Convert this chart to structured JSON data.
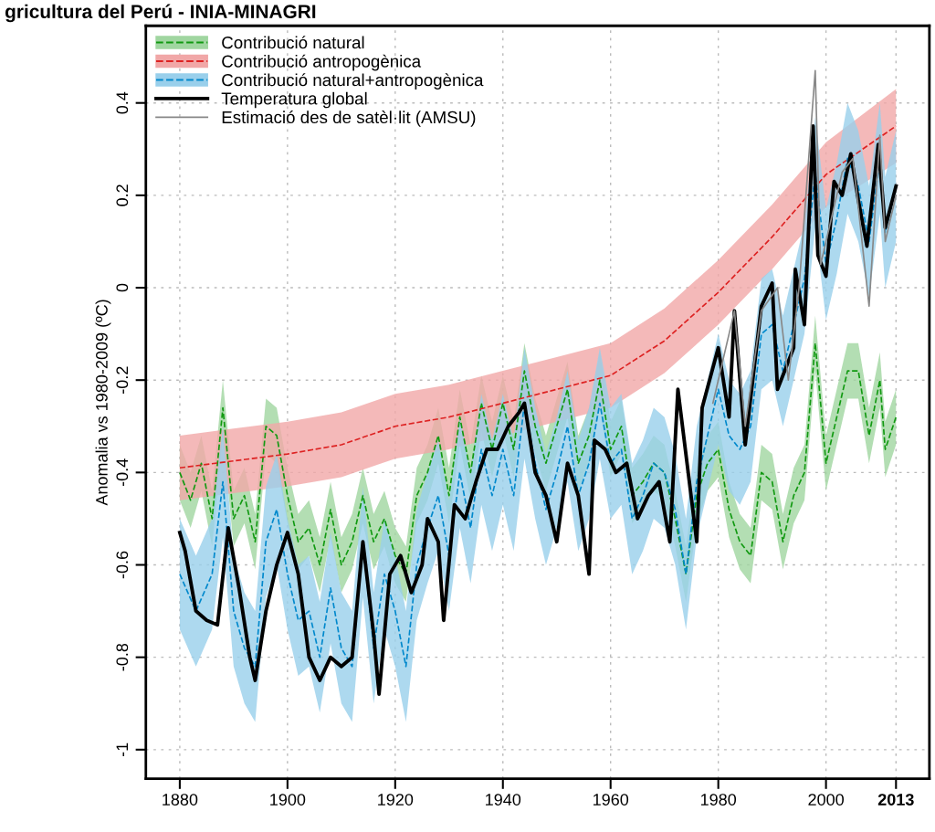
{
  "chart_data": {
    "type": "line",
    "ylabel": "Anomalia vs 1980-2009 (ºC)",
    "annotations": [
      "gricultura del Perú - INIA-MINAGRI"
    ],
    "xlim": [
      1873.7,
      2019.2
    ],
    "ylim": [
      -1.063,
      0.567
    ],
    "xticks": [
      1880,
      1900,
      1920,
      1940,
      1960,
      1980,
      2000,
      {
        "value": 2013,
        "label": "2013"
      }
    ],
    "yticks": [
      -1,
      -0.8,
      -0.6,
      -0.4,
      -0.2,
      0,
      0.2,
      0.4
    ],
    "grid": true,
    "legend": "top left",
    "series": [
      {
        "name": "Contribució natural",
        "color": "#119911",
        "line_style": "dashed",
        "x": [
          1880,
          1882,
          1884,
          1886,
          1888,
          1890,
          1892,
          1894,
          1896,
          1898,
          1900,
          1902,
          1904,
          1906,
          1908,
          1910,
          1912,
          1914,
          1916,
          1918,
          1920,
          1922,
          1924,
          1926,
          1928,
          1930,
          1932,
          1934,
          1936,
          1938,
          1940,
          1942,
          1944,
          1946,
          1948,
          1950,
          1952,
          1954,
          1956,
          1958,
          1960,
          1962,
          1964,
          1966,
          1968,
          1970,
          1972,
          1974,
          1976,
          1978,
          1980,
          1982,
          1984,
          1986,
          1988,
          1990,
          1992,
          1994,
          1996,
          1998,
          2000,
          2002,
          2004,
          2006,
          2008,
          2010,
          2011,
          2013
        ],
        "values": [
          -0.4,
          -0.46,
          -0.38,
          -0.5,
          -0.26,
          -0.5,
          -0.45,
          -0.55,
          -0.3,
          -0.32,
          -0.45,
          -0.55,
          -0.52,
          -0.6,
          -0.48,
          -0.6,
          -0.55,
          -0.45,
          -0.55,
          -0.5,
          -0.58,
          -0.62,
          -0.45,
          -0.4,
          -0.32,
          -0.45,
          -0.28,
          -0.4,
          -0.25,
          -0.35,
          -0.25,
          -0.35,
          -0.18,
          -0.3,
          -0.38,
          -0.3,
          -0.22,
          -0.38,
          -0.32,
          -0.2,
          -0.35,
          -0.3,
          -0.45,
          -0.42,
          -0.38,
          -0.4,
          -0.5,
          -0.62,
          -0.45,
          -0.38,
          -0.35,
          -0.48,
          -0.55,
          -0.58,
          -0.4,
          -0.42,
          -0.55,
          -0.45,
          -0.4,
          -0.12,
          -0.38,
          -0.28,
          -0.18,
          -0.18,
          -0.32,
          -0.2,
          -0.35,
          -0.28
        ],
        "lower": [
          -0.46,
          -0.52,
          -0.44,
          -0.56,
          -0.32,
          -0.56,
          -0.51,
          -0.61,
          -0.36,
          -0.38,
          -0.51,
          -0.61,
          -0.58,
          -0.66,
          -0.54,
          -0.66,
          -0.61,
          -0.51,
          -0.61,
          -0.56,
          -0.64,
          -0.68,
          -0.51,
          -0.46,
          -0.38,
          -0.51,
          -0.34,
          -0.46,
          -0.31,
          -0.41,
          -0.31,
          -0.41,
          -0.24,
          -0.36,
          -0.44,
          -0.36,
          -0.28,
          -0.44,
          -0.38,
          -0.26,
          -0.41,
          -0.36,
          -0.51,
          -0.48,
          -0.44,
          -0.46,
          -0.56,
          -0.68,
          -0.51,
          -0.44,
          -0.41,
          -0.54,
          -0.61,
          -0.64,
          -0.46,
          -0.48,
          -0.61,
          -0.51,
          -0.46,
          -0.18,
          -0.44,
          -0.34,
          -0.24,
          -0.24,
          -0.38,
          -0.26,
          -0.41,
          -0.34
        ],
        "upper": [
          -0.34,
          -0.4,
          -0.32,
          -0.44,
          -0.2,
          -0.44,
          -0.39,
          -0.49,
          -0.24,
          -0.26,
          -0.39,
          -0.49,
          -0.46,
          -0.54,
          -0.42,
          -0.54,
          -0.49,
          -0.39,
          -0.49,
          -0.44,
          -0.52,
          -0.56,
          -0.39,
          -0.34,
          -0.26,
          -0.39,
          -0.22,
          -0.34,
          -0.19,
          -0.29,
          -0.19,
          -0.29,
          -0.12,
          -0.24,
          -0.32,
          -0.24,
          -0.16,
          -0.32,
          -0.26,
          -0.14,
          -0.29,
          -0.24,
          -0.39,
          -0.36,
          -0.32,
          -0.34,
          -0.44,
          -0.56,
          -0.39,
          -0.32,
          -0.29,
          -0.42,
          -0.49,
          -0.52,
          -0.34,
          -0.36,
          -0.49,
          -0.39,
          -0.34,
          -0.06,
          -0.32,
          -0.22,
          -0.12,
          -0.12,
          -0.26,
          -0.14,
          -0.29,
          -0.22
        ]
      },
      {
        "name": "Contribució antropogènica",
        "color": "#dd2222",
        "line_style": "dashed",
        "x": [
          1880,
          1890,
          1900,
          1910,
          1920,
          1930,
          1940,
          1950,
          1960,
          1970,
          1980,
          1990,
          2000,
          2013
        ],
        "values": [
          -0.39,
          -0.375,
          -0.36,
          -0.34,
          -0.3,
          -0.28,
          -0.25,
          -0.22,
          -0.19,
          -0.115,
          -0.01,
          0.11,
          0.245,
          0.35
        ],
        "lower": [
          -0.46,
          -0.445,
          -0.43,
          -0.41,
          -0.37,
          -0.35,
          -0.32,
          -0.29,
          -0.26,
          -0.185,
          -0.08,
          0.04,
          0.175,
          0.27
        ],
        "upper": [
          -0.32,
          -0.305,
          -0.29,
          -0.27,
          -0.23,
          -0.21,
          -0.18,
          -0.15,
          -0.12,
          -0.045,
          0.06,
          0.18,
          0.315,
          0.43
        ]
      },
      {
        "name": "Contribució natural+antropogènica",
        "color": "#0088cc",
        "line_style": "dashed",
        "x": [
          1880,
          1883,
          1886,
          1888,
          1890,
          1892,
          1894,
          1896,
          1898,
          1900,
          1902,
          1904,
          1906,
          1908,
          1910,
          1912,
          1914,
          1916,
          1918,
          1920,
          1922,
          1924,
          1926,
          1928,
          1930,
          1932,
          1934,
          1936,
          1938,
          1940,
          1942,
          1944,
          1946,
          1948,
          1950,
          1952,
          1954,
          1956,
          1958,
          1960,
          1962,
          1964,
          1966,
          1968,
          1970,
          1972,
          1974,
          1976,
          1978,
          1980,
          1982,
          1984,
          1986,
          1988,
          1990,
          1992,
          1994,
          1996,
          1998,
          2000,
          2002,
          2004,
          2006,
          2008,
          2010,
          2011,
          2013
        ],
        "values": [
          -0.62,
          -0.7,
          -0.62,
          -0.42,
          -0.7,
          -0.78,
          -0.82,
          -0.55,
          -0.48,
          -0.62,
          -0.72,
          -0.7,
          -0.8,
          -0.65,
          -0.78,
          -0.82,
          -0.55,
          -0.78,
          -0.62,
          -0.7,
          -0.82,
          -0.6,
          -0.52,
          -0.45,
          -0.58,
          -0.4,
          -0.52,
          -0.35,
          -0.45,
          -0.35,
          -0.45,
          -0.25,
          -0.38,
          -0.48,
          -0.4,
          -0.3,
          -0.45,
          -0.38,
          -0.25,
          -0.38,
          -0.35,
          -0.5,
          -0.45,
          -0.38,
          -0.4,
          -0.48,
          -0.62,
          -0.42,
          -0.32,
          -0.22,
          -0.32,
          -0.35,
          -0.3,
          -0.1,
          -0.08,
          -0.18,
          -0.08,
          0.02,
          0.25,
          0.05,
          0.15,
          0.28,
          0.22,
          0.1,
          0.28,
          0.12,
          0.22
        ],
        "lower": [
          -0.74,
          -0.82,
          -0.74,
          -0.54,
          -0.82,
          -0.9,
          -0.94,
          -0.67,
          -0.6,
          -0.74,
          -0.84,
          -0.82,
          -0.92,
          -0.77,
          -0.9,
          -0.94,
          -0.67,
          -0.9,
          -0.74,
          -0.82,
          -0.94,
          -0.72,
          -0.64,
          -0.57,
          -0.7,
          -0.52,
          -0.64,
          -0.47,
          -0.57,
          -0.47,
          -0.57,
          -0.37,
          -0.5,
          -0.6,
          -0.52,
          -0.42,
          -0.57,
          -0.5,
          -0.37,
          -0.5,
          -0.47,
          -0.62,
          -0.57,
          -0.5,
          -0.52,
          -0.6,
          -0.74,
          -0.54,
          -0.44,
          -0.34,
          -0.44,
          -0.47,
          -0.42,
          -0.22,
          -0.2,
          -0.3,
          -0.2,
          -0.1,
          0.13,
          -0.07,
          0.03,
          0.16,
          0.1,
          -0.02,
          0.16,
          0.0,
          0.1
        ],
        "upper": [
          -0.5,
          -0.58,
          -0.5,
          -0.3,
          -0.58,
          -0.66,
          -0.7,
          -0.43,
          -0.36,
          -0.5,
          -0.6,
          -0.58,
          -0.68,
          -0.53,
          -0.66,
          -0.7,
          -0.43,
          -0.66,
          -0.5,
          -0.58,
          -0.7,
          -0.48,
          -0.4,
          -0.33,
          -0.46,
          -0.28,
          -0.4,
          -0.23,
          -0.33,
          -0.23,
          -0.33,
          -0.13,
          -0.26,
          -0.36,
          -0.28,
          -0.18,
          -0.33,
          -0.26,
          -0.13,
          -0.26,
          -0.23,
          -0.38,
          -0.33,
          -0.26,
          -0.28,
          -0.36,
          -0.5,
          -0.3,
          -0.2,
          -0.1,
          -0.2,
          -0.23,
          -0.18,
          0.02,
          0.04,
          -0.06,
          0.04,
          0.14,
          0.37,
          0.17,
          0.27,
          0.4,
          0.34,
          0.22,
          0.4,
          0.24,
          0.34
        ]
      },
      {
        "name": "Temperatura global",
        "color": "#000000",
        "line_style": "solid",
        "x": [
          1880,
          1881,
          1883,
          1885,
          1887,
          1889,
          1891,
          1893,
          1894,
          1896,
          1898,
          1900,
          1902,
          1904,
          1906,
          1908,
          1910,
          1912,
          1914,
          1916,
          1917,
          1919,
          1921,
          1923,
          1925,
          1926,
          1928,
          1929,
          1931,
          1933,
          1935,
          1937,
          1939,
          1941,
          1943,
          1944,
          1946,
          1948,
          1950,
          1952,
          1954,
          1956,
          1957,
          1959,
          1961,
          1963,
          1965,
          1967,
          1969,
          1971,
          1972.5,
          1976,
          1977,
          1980,
          1982,
          1983,
          1985,
          1987,
          1988,
          1990,
          1991,
          1994,
          1994.3,
          1996,
          1997.6,
          1998.5,
          2000,
          2001.5,
          2003,
          2004.6,
          2006,
          2007.6,
          2009.7,
          2011,
          2013
        ],
        "values": [
          -0.53,
          -0.57,
          -0.7,
          -0.72,
          -0.73,
          -0.52,
          -0.65,
          -0.8,
          -0.85,
          -0.7,
          -0.6,
          -0.53,
          -0.62,
          -0.8,
          -0.85,
          -0.8,
          -0.82,
          -0.8,
          -0.55,
          -0.75,
          -0.88,
          -0.62,
          -0.58,
          -0.66,
          -0.6,
          -0.5,
          -0.55,
          -0.72,
          -0.47,
          -0.5,
          -0.42,
          -0.35,
          -0.35,
          -0.3,
          -0.27,
          -0.25,
          -0.4,
          -0.45,
          -0.55,
          -0.38,
          -0.45,
          -0.62,
          -0.33,
          -0.35,
          -0.4,
          -0.38,
          -0.5,
          -0.45,
          -0.42,
          -0.55,
          -0.22,
          -0.55,
          -0.26,
          -0.13,
          -0.28,
          -0.05,
          -0.34,
          -0.14,
          -0.04,
          0.01,
          -0.22,
          -0.13,
          0.04,
          -0.08,
          0.35,
          0.07,
          0.025,
          0.23,
          0.2,
          0.29,
          0.19,
          0.09,
          0.31,
          0.13,
          0.22
        ]
      },
      {
        "name": "Estimació des de satèl·lit (AMSU)",
        "color": "#888888",
        "line_style": "solid",
        "x": [
          1979,
          1981,
          1983,
          1985,
          1988,
          1991,
          1993,
          1995,
          1998,
          1999,
          2001,
          2003,
          2005,
          2008,
          2010,
          2011,
          2013
        ],
        "values": [
          -0.25,
          -0.15,
          -0.05,
          -0.3,
          -0.05,
          0.0,
          -0.2,
          0.0,
          0.47,
          0.05,
          0.15,
          0.25,
          0.28,
          -0.04,
          0.33,
          0.1,
          0.2
        ]
      }
    ]
  }
}
